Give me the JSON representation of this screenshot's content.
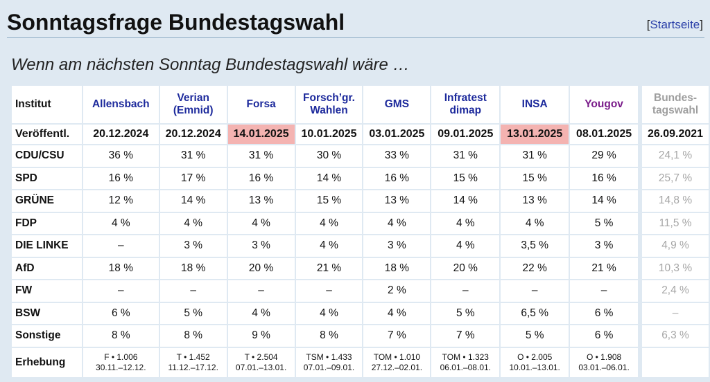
{
  "header": {
    "title": "Sonntagsfrage Bundestagswahl",
    "startseite_open": "[",
    "startseite_label": "Startseite",
    "startseite_close": "]"
  },
  "subtitle": "Wenn am nächsten Sonntag Bundestagswahl wäre …",
  "table": {
    "corner_label": "Institut",
    "publication_label": "Veröffentl.",
    "institutes": [
      {
        "name_1": "Allensbach",
        "name_2": "",
        "published": "20.12.2024",
        "highlight": false,
        "color": "#1d2a9c"
      },
      {
        "name_1": "Verian",
        "name_2": "(Emnid)",
        "published": "20.12.2024",
        "highlight": false,
        "color": "#1d2a9c"
      },
      {
        "name_1": "Forsa",
        "name_2": "",
        "published": "14.01.2025",
        "highlight": true,
        "color": "#1d2a9c"
      },
      {
        "name_1": "Forsch’gr.",
        "name_2": "Wahlen",
        "published": "10.01.2025",
        "highlight": false,
        "color": "#1d2a9c"
      },
      {
        "name_1": "GMS",
        "name_2": "",
        "published": "03.01.2025",
        "highlight": false,
        "color": "#1d2a9c"
      },
      {
        "name_1": "Infratest",
        "name_2": "dimap",
        "published": "09.01.2025",
        "highlight": false,
        "color": "#1d2a9c"
      },
      {
        "name_1": "INSA",
        "name_2": "",
        "published": "13.01.2025",
        "highlight": true,
        "color": "#1d2a9c"
      },
      {
        "name_1": "Yougov",
        "name_2": "",
        "published": "08.01.2025",
        "highlight": false,
        "color": "#7a1c8a"
      }
    ],
    "election": {
      "name_1": "Bundes-",
      "name_2": "tagswahl",
      "published": "26.09.2021"
    },
    "parties": [
      {
        "name": "CDU/CSU",
        "values": [
          "36 %",
          "31 %",
          "31 %",
          "30 %",
          "33 %",
          "31 %",
          "31 %",
          "29 %"
        ],
        "election": "24,1 %"
      },
      {
        "name": "SPD",
        "values": [
          "16 %",
          "17 %",
          "16 %",
          "14 %",
          "16 %",
          "15 %",
          "15 %",
          "16 %"
        ],
        "election": "25,7 %"
      },
      {
        "name": "GRÜNE",
        "values": [
          "12 %",
          "14 %",
          "13 %",
          "15 %",
          "13 %",
          "14 %",
          "13 %",
          "14 %"
        ],
        "election": "14,8 %"
      },
      {
        "name": "FDP",
        "values": [
          "4 %",
          "4 %",
          "4 %",
          "4 %",
          "4 %",
          "4 %",
          "4 %",
          "5 %"
        ],
        "election": "11,5 %"
      },
      {
        "name": "DIE LINKE",
        "values": [
          "–",
          "3 %",
          "3 %",
          "4 %",
          "3 %",
          "4 %",
          "3,5 %",
          "3 %"
        ],
        "election": "4,9 %"
      },
      {
        "name": "AfD",
        "values": [
          "18 %",
          "18 %",
          "20 %",
          "21 %",
          "18 %",
          "20 %",
          "22 %",
          "21 %"
        ],
        "election": "10,3 %"
      },
      {
        "name": "FW",
        "values": [
          "–",
          "–",
          "–",
          "–",
          "2 %",
          "–",
          "–",
          "–"
        ],
        "election": "2,4 %"
      },
      {
        "name": "BSW",
        "values": [
          "6 %",
          "5 %",
          "4 %",
          "4 %",
          "4 %",
          "5 %",
          "6,5 %",
          "6 %"
        ],
        "election": "–"
      },
      {
        "name": "Sonstige",
        "values": [
          "8 %",
          "8 %",
          "9 %",
          "8 %",
          "7 %",
          "7 %",
          "5 %",
          "6 %"
        ],
        "election": "6,3 %"
      }
    ],
    "survey_label": "Erhebung",
    "surveys": [
      {
        "line_1": "F • 1.006",
        "line_2": "30.11.–12.12."
      },
      {
        "line_1": "T • 1.452",
        "line_2": "11.12.–17.12."
      },
      {
        "line_1": "T • 2.504",
        "line_2": "07.01.–13.01."
      },
      {
        "line_1": "TSM • 1.433",
        "line_2": "07.01.–09.01."
      },
      {
        "line_1": "TOM • 1.010",
        "line_2": "27.12.–02.01."
      },
      {
        "line_1": "TOM • 1.323",
        "line_2": "06.01.–08.01."
      },
      {
        "line_1": "O • 2.005",
        "line_2": "10.01.–13.01."
      },
      {
        "line_1": "O • 1.908",
        "line_2": "03.01.–06.01."
      }
    ]
  }
}
